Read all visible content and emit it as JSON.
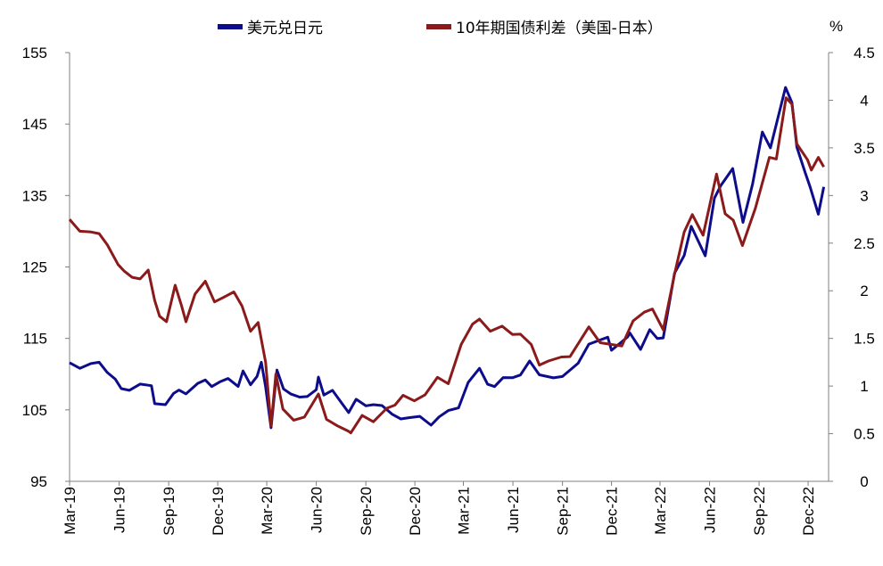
{
  "chart_data": {
    "type": "line",
    "legend": {
      "placement": "top-center",
      "entries": [
        "美元兑日元",
        "10年期国债利差（美国-日本）"
      ]
    },
    "right_axis_unit": "%",
    "y_left": {
      "ticks": [
        "95",
        "105",
        "115",
        "125",
        "135",
        "145",
        "155"
      ],
      "lim": [
        95,
        155
      ]
    },
    "y_right": {
      "ticks": [
        "0",
        "0.5",
        "1",
        "1.5",
        "2",
        "2.5",
        "3",
        "3.5",
        "4",
        "4.5"
      ],
      "lim": [
        0,
        4.5
      ]
    },
    "x_ticks": [
      "Mar-19",
      "Jun-19",
      "Sep-19",
      "Dec-19",
      "Mar-20",
      "Jun-20",
      "Sep-20",
      "Dec-20",
      "Mar-21",
      "Jun-21",
      "Sep-21",
      "Dec-21",
      "Mar-22",
      "Jun-22",
      "Sep-22",
      "Dec-22"
    ],
    "grid": false,
    "series": [
      {
        "name": "美元兑日元",
        "axis": "left",
        "color": "#0d0d8c",
        "points": [
          [
            "2019-03-01",
            111.6
          ],
          [
            "2019-03-20",
            110.7
          ],
          [
            "2019-04-10",
            111.6
          ],
          [
            "2019-04-25",
            112.0
          ],
          [
            "2019-05-10",
            110.0
          ],
          [
            "2019-05-25",
            109.3
          ],
          [
            "2019-06-05",
            108.2
          ],
          [
            "2019-06-20",
            107.4
          ],
          [
            "2019-07-10",
            108.5
          ],
          [
            "2019-07-31",
            108.5
          ],
          [
            "2019-08-06",
            106.2
          ],
          [
            "2019-08-26",
            105.5
          ],
          [
            "2019-09-10",
            107.3
          ],
          [
            "2019-09-20",
            108.0
          ],
          [
            "2019-10-03",
            106.9
          ],
          [
            "2019-10-25",
            108.6
          ],
          [
            "2019-11-08",
            109.3
          ],
          [
            "2019-11-20",
            108.6
          ],
          [
            "2019-12-05",
            108.7
          ],
          [
            "2019-12-20",
            109.4
          ],
          [
            "2020-01-08",
            108.5
          ],
          [
            "2020-01-17",
            110.1
          ],
          [
            "2020-01-31",
            108.4
          ],
          [
            "2020-02-12",
            109.8
          ],
          [
            "2020-02-20",
            112.0
          ],
          [
            "2020-02-28",
            108.0
          ],
          [
            "2020-03-09",
            102.5
          ],
          [
            "2020-03-20",
            110.8
          ],
          [
            "2020-04-01",
            107.6
          ],
          [
            "2020-04-15",
            107.1
          ],
          [
            "2020-05-01",
            106.9
          ],
          [
            "2020-05-15",
            107.2
          ],
          [
            "2020-06-01",
            107.6
          ],
          [
            "2020-06-05",
            109.6
          ],
          [
            "2020-06-15",
            107.3
          ],
          [
            "2020-07-01",
            107.4
          ],
          [
            "2020-07-31",
            104.5
          ],
          [
            "2020-08-14",
            106.6
          ],
          [
            "2020-09-01",
            105.9
          ],
          [
            "2020-09-15",
            105.5
          ],
          [
            "2020-10-01",
            105.6
          ],
          [
            "2020-10-20",
            104.6
          ],
          [
            "2020-11-05",
            103.4
          ],
          [
            "2020-11-20",
            103.8
          ],
          [
            "2020-12-10",
            104.2
          ],
          [
            "2020-12-31",
            103.2
          ],
          [
            "2021-01-15",
            103.8
          ],
          [
            "2021-02-01",
            104.9
          ],
          [
            "2021-02-20",
            105.5
          ],
          [
            "2021-03-10",
            108.5
          ],
          [
            "2021-03-31",
            110.7
          ],
          [
            "2021-04-15",
            108.7
          ],
          [
            "2021-04-28",
            108.6
          ],
          [
            "2021-05-14",
            109.3
          ],
          [
            "2021-05-31",
            109.5
          ],
          [
            "2021-06-15",
            110.1
          ],
          [
            "2021-07-02",
            111.5
          ],
          [
            "2021-07-20",
            109.8
          ],
          [
            "2021-08-15",
            109.6
          ],
          [
            "2021-09-01",
            110.0
          ],
          [
            "2021-09-30",
            111.3
          ],
          [
            "2021-10-20",
            114.2
          ],
          [
            "2021-11-24",
            115.4
          ],
          [
            "2021-12-01",
            113.0
          ],
          [
            "2021-12-31",
            115.1
          ],
          [
            "2022-01-04",
            115.9
          ],
          [
            "2022-01-24",
            113.8
          ],
          [
            "2022-02-10",
            116.0
          ],
          [
            "2022-02-24",
            115.0
          ],
          [
            "2022-03-07",
            115.3
          ],
          [
            "2022-03-28",
            123.8
          ],
          [
            "2022-04-15",
            126.5
          ],
          [
            "2022-04-28",
            130.8
          ],
          [
            "2022-05-24",
            126.9
          ],
          [
            "2022-06-10",
            134.4
          ],
          [
            "2022-06-22",
            136.4
          ],
          [
            "2022-07-14",
            139.0
          ],
          [
            "2022-08-02",
            130.9
          ],
          [
            "2022-08-20",
            136.5
          ],
          [
            "2022-09-07",
            144.0
          ],
          [
            "2022-09-22",
            142.0
          ],
          [
            "2022-10-20",
            149.9
          ],
          [
            "2022-11-01",
            148.0
          ],
          [
            "2022-11-10",
            142.0
          ],
          [
            "2022-11-25",
            138.0
          ],
          [
            "2022-12-05",
            136.0
          ],
          [
            "2022-12-20",
            132.5
          ],
          [
            "2022-12-30",
            136.2
          ]
        ]
      },
      {
        "name": "10年期国债利差（美国-日本）",
        "axis": "right",
        "color": "#8b1a1a",
        "points": [
          [
            "2019-03-01",
            2.75
          ],
          [
            "2019-03-20",
            2.65
          ],
          [
            "2019-04-10",
            2.6
          ],
          [
            "2019-04-25",
            2.6
          ],
          [
            "2019-05-10",
            2.5
          ],
          [
            "2019-05-30",
            2.25
          ],
          [
            "2019-06-10",
            2.2
          ],
          [
            "2019-06-25",
            2.15
          ],
          [
            "2019-07-10",
            2.15
          ],
          [
            "2019-07-25",
            2.2
          ],
          [
            "2019-08-06",
            1.9
          ],
          [
            "2019-08-15",
            1.75
          ],
          [
            "2019-08-28",
            1.65
          ],
          [
            "2019-09-13",
            2.05
          ],
          [
            "2019-09-25",
            1.85
          ],
          [
            "2019-10-03",
            1.7
          ],
          [
            "2019-10-20",
            1.95
          ],
          [
            "2019-11-08",
            2.1
          ],
          [
            "2019-11-25",
            1.9
          ],
          [
            "2019-12-10",
            1.9
          ],
          [
            "2019-12-31",
            1.98
          ],
          [
            "2020-01-15",
            1.85
          ],
          [
            "2020-01-31",
            1.6
          ],
          [
            "2020-02-14",
            1.65
          ],
          [
            "2020-02-28",
            1.25
          ],
          [
            "2020-03-09",
            0.6
          ],
          [
            "2020-03-18",
            1.1
          ],
          [
            "2020-03-31",
            0.75
          ],
          [
            "2020-04-20",
            0.65
          ],
          [
            "2020-05-10",
            0.7
          ],
          [
            "2020-06-05",
            0.9
          ],
          [
            "2020-06-20",
            0.65
          ],
          [
            "2020-07-10",
            0.6
          ],
          [
            "2020-07-31",
            0.5
          ],
          [
            "2020-08-04",
            0.5
          ],
          [
            "2020-08-25",
            0.7
          ],
          [
            "2020-09-15",
            0.65
          ],
          [
            "2020-10-10",
            0.75
          ],
          [
            "2020-10-25",
            0.8
          ],
          [
            "2020-11-09",
            0.92
          ],
          [
            "2020-11-30",
            0.82
          ],
          [
            "2020-12-20",
            0.9
          ],
          [
            "2021-01-12",
            1.1
          ],
          [
            "2021-02-01",
            1.05
          ],
          [
            "2021-02-25",
            1.42
          ],
          [
            "2021-03-18",
            1.65
          ],
          [
            "2021-03-31",
            1.72
          ],
          [
            "2021-04-20",
            1.55
          ],
          [
            "2021-05-12",
            1.62
          ],
          [
            "2021-05-31",
            1.55
          ],
          [
            "2021-06-15",
            1.57
          ],
          [
            "2021-07-05",
            1.42
          ],
          [
            "2021-07-20",
            1.22
          ],
          [
            "2021-08-06",
            1.28
          ],
          [
            "2021-08-30",
            1.28
          ],
          [
            "2021-09-15",
            1.3
          ],
          [
            "2021-10-20",
            1.63
          ],
          [
            "2021-11-10",
            1.48
          ],
          [
            "2021-11-30",
            1.42
          ],
          [
            "2021-12-20",
            1.42
          ],
          [
            "2022-01-10",
            1.7
          ],
          [
            "2022-01-31",
            1.75
          ],
          [
            "2022-02-15",
            1.8
          ],
          [
            "2022-03-07",
            1.6
          ],
          [
            "2022-03-28",
            2.2
          ],
          [
            "2022-04-15",
            2.6
          ],
          [
            "2022-04-30",
            2.8
          ],
          [
            "2022-05-20",
            2.6
          ],
          [
            "2022-06-14",
            3.2
          ],
          [
            "2022-06-30",
            2.8
          ],
          [
            "2022-07-15",
            2.75
          ],
          [
            "2022-08-01",
            2.5
          ],
          [
            "2022-08-25",
            2.85
          ],
          [
            "2022-09-20",
            3.4
          ],
          [
            "2022-10-03",
            3.4
          ],
          [
            "2022-10-21",
            4.0
          ],
          [
            "2022-11-01",
            3.95
          ],
          [
            "2022-11-10",
            3.55
          ],
          [
            "2022-11-30",
            3.4
          ],
          [
            "2022-12-07",
            3.25
          ],
          [
            "2022-12-20",
            3.4
          ],
          [
            "2022-12-30",
            3.3
          ]
        ]
      }
    ]
  }
}
